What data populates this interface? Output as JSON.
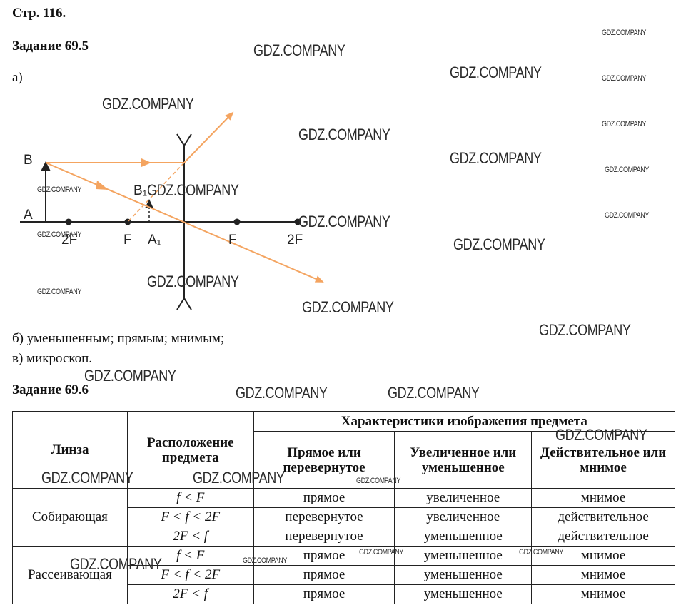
{
  "page_header": "Стр. 116.",
  "task1": {
    "title": "Задание 69.5",
    "part_a": "а)",
    "part_b": "б) уменьшенным; прямым; мнимым;",
    "part_c": "в) микроскоп."
  },
  "diagram": {
    "labels": {
      "B": "B",
      "A": "A",
      "B1": "B₁",
      "A1": "A₁",
      "left_2F": "2F",
      "left_F": "F",
      "right_F": "F",
      "right_2F": "2F"
    },
    "ray_color": "#f4a460"
  },
  "task2": {
    "title": "Задание 69.6",
    "table": {
      "head_lens": "Линза",
      "head_position": "Расположение предмета",
      "head_group": "Характеристики изображения предмета",
      "head_c1": "Прямое или перевернутое",
      "head_c2": "Увеличенное или уменьшенное",
      "head_c3": "Действительное или мнимое",
      "groups": [
        {
          "lens": "Собирающая",
          "rows": [
            {
              "pos": "f < F",
              "c1": "прямое",
              "c2": "увеличенное",
              "c3": "мнимое"
            },
            {
              "pos": "F < f < 2F",
              "c1": "перевернутое",
              "c2": "увеличенное",
              "c3": "действительное"
            },
            {
              "pos": "2F < f",
              "c1": "перевернутое",
              "c2": "уменьшенное",
              "c3": "действительное"
            }
          ]
        },
        {
          "lens": "Рассеивающая",
          "rows": [
            {
              "pos": "f < F",
              "c1": "прямое",
              "c2": "уменьшенное",
              "c3": "мнимое"
            },
            {
              "pos": "F < f < 2F",
              "c1": "прямое",
              "c2": "уменьшенное",
              "c3": "мнимое"
            },
            {
              "pos": "2F < f",
              "c1": "прямое",
              "c2": "уменьшенное",
              "c3": "мнимое"
            }
          ]
        }
      ]
    }
  },
  "watermark": "GDZ.COMPANY"
}
